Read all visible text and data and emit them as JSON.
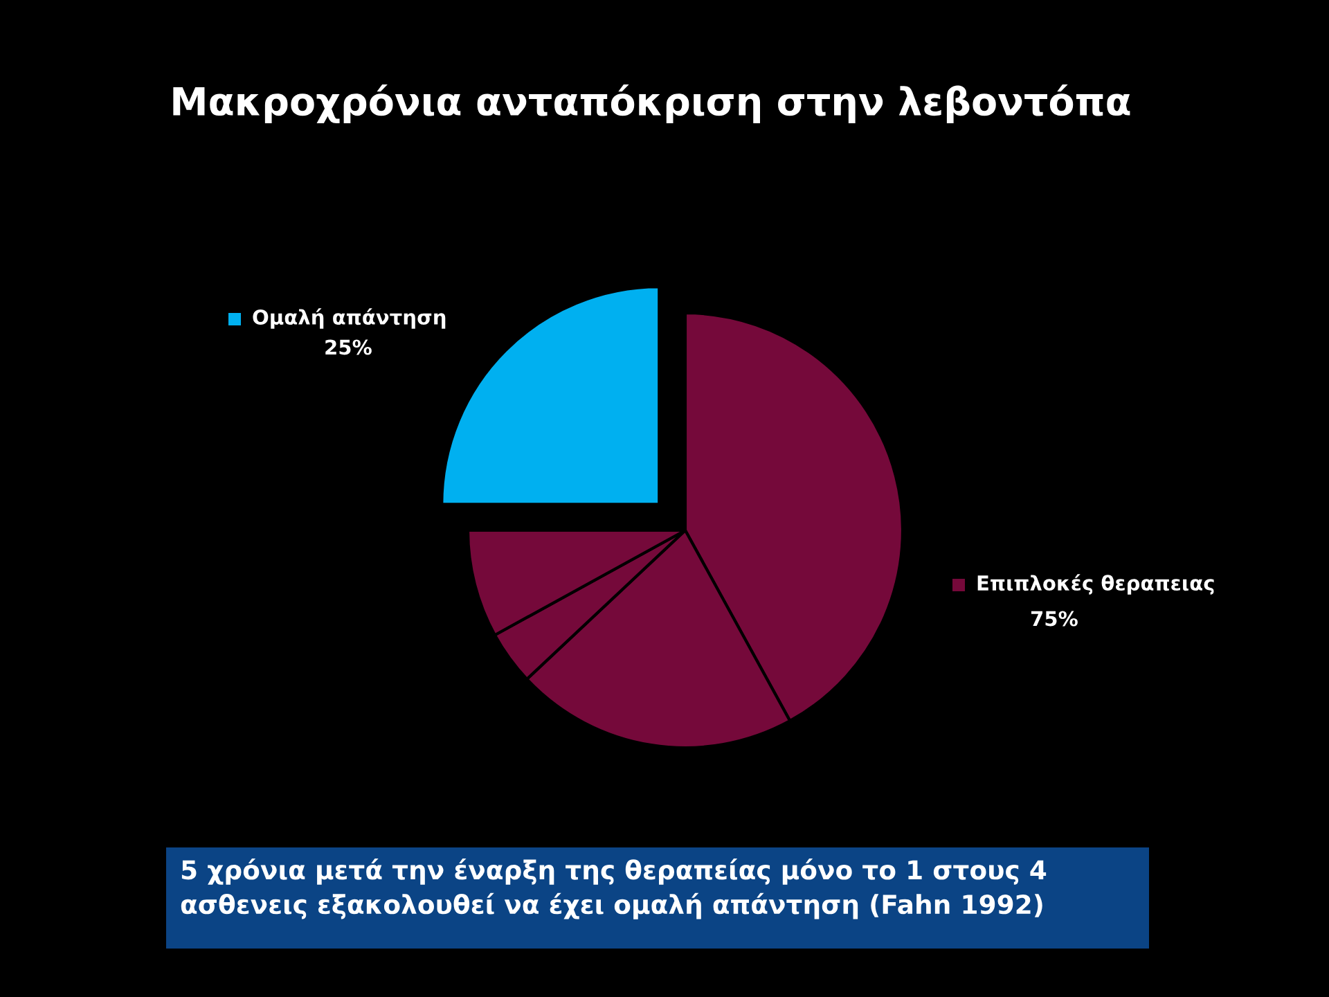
{
  "chart_data": {
    "type": "pie",
    "title": "Μακροχρόνια ανταπόκριση στην λεβοντόπα",
    "categories": [
      "Επιπλοκές θεραπειας",
      null,
      null,
      null,
      "Ομαλή απάντηση"
    ],
    "values": [
      42,
      21,
      4,
      8,
      25
    ],
    "legend": "right",
    "colors": [
      "#75093a",
      "#75093a",
      "#75093a",
      "#75093a",
      "#00b0f0"
    ],
    "annotations": [
      "75%",
      "25%",
      "5 χρόνια μετά την έναρξη της θεραπείας μόνο το 1 στους 4 ασθενεις εξακολουθεί να έχει ομαλή απάντηση (Fahn 1992)"
    ]
  }
}
